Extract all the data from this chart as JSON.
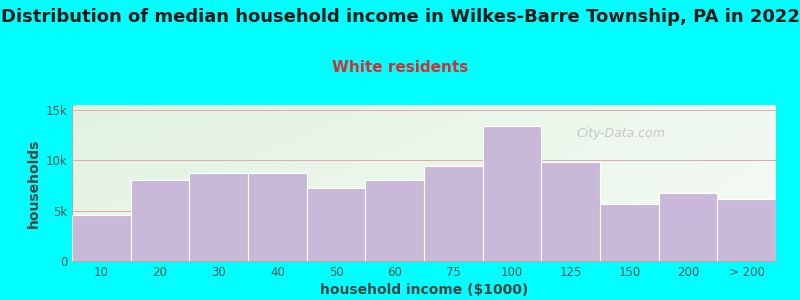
{
  "title": "Distribution of median household income in Wilkes-Barre Township, PA in 2022",
  "subtitle": "White residents",
  "xlabel": "household income ($1000)",
  "ylabel": "households",
  "background_outer": "#00FFFF",
  "background_inner_top_left": "#ddeedd",
  "background_inner_bottom_right": "#f8fbf8",
  "bar_color": "#c9b8d8",
  "bar_edge_color": "#ffffff",
  "categories": [
    "10",
    "20",
    "30",
    "40",
    "50",
    "60",
    "75",
    "100",
    "125",
    "150",
    "200",
    "> 200"
  ],
  "values": [
    4600,
    8000,
    8700,
    8700,
    7300,
    8000,
    9400,
    13400,
    9800,
    5700,
    6800,
    6200
  ],
  "yticks": [
    0,
    5000,
    10000,
    15000
  ],
  "ytick_labels": [
    "0",
    "5k",
    "10k",
    "15k"
  ],
  "ylim": [
    0,
    15500
  ],
  "title_fontsize": 13,
  "subtitle_fontsize": 11,
  "axis_label_fontsize": 10,
  "tick_fontsize": 8.5,
  "title_color": "#1a1a1a",
  "subtitle_color": "#cc3333",
  "axis_label_color": "#444444",
  "tick_color": "#555555",
  "grid_color": "#ddaaaa",
  "watermark": "City-Data.com"
}
